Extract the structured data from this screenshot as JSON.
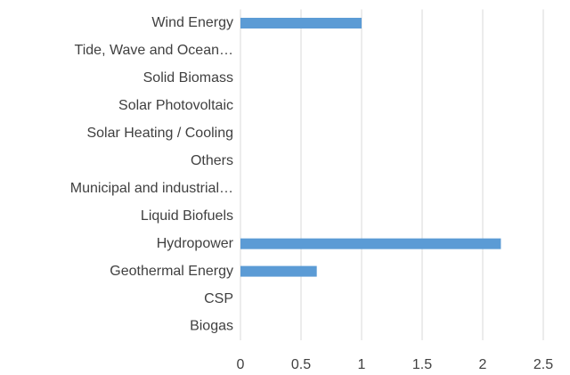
{
  "chart_data": {
    "type": "barh",
    "categories": [
      "Wind Energy",
      "Tide, Wave and Ocean…",
      "Solid Biomass",
      "Solar Photovoltaic",
      "Solar Heating / Cooling",
      "Others",
      "Municipal and industrial…",
      "Liquid Biofuels",
      "Hydropower",
      "Geothermal Energy",
      "CSP",
      "Biogas"
    ],
    "values": [
      1,
      0,
      0,
      0,
      0,
      0,
      0,
      0,
      2.15,
      0.63,
      0,
      0
    ],
    "color": "#5b9bd5",
    "xlim": [
      0,
      2.5
    ],
    "xticks": [
      0,
      0.5,
      1,
      1.5,
      2,
      2.5
    ],
    "grid": true
  }
}
